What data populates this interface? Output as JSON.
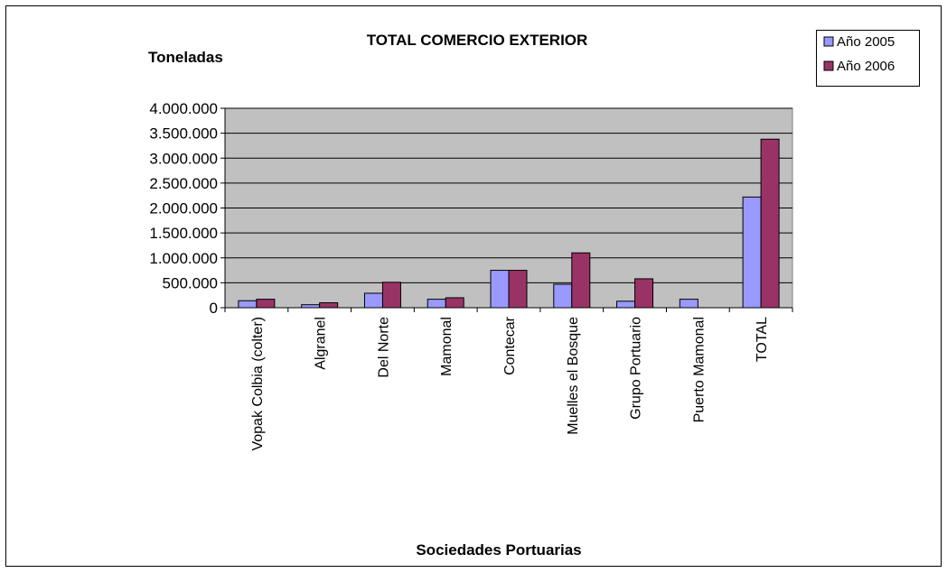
{
  "chart_data": {
    "type": "bar",
    "title": "TOTAL COMERCIO EXTERIOR",
    "ylabel": "Toneladas",
    "xlabel": "Sociedades Portuarias",
    "categories": [
      "Vopak Colbia  (colter)",
      "Algranel",
      "Del  Norte",
      "Mamonal",
      "Contecar",
      "Muelles el Bosque",
      "Grupo Portuario",
      "Puerto Mamonal",
      "TOTAL"
    ],
    "series": [
      {
        "name": "Año 2005",
        "color": "#9999ff",
        "values": [
          140000,
          60000,
          290000,
          170000,
          750000,
          470000,
          130000,
          170000,
          2220000
        ]
      },
      {
        "name": "Año 2006",
        "color": "#993366",
        "values": [
          170000,
          100000,
          510000,
          200000,
          750000,
          1100000,
          580000,
          0,
          3380000
        ]
      }
    ],
    "ylim": [
      0,
      4000000
    ],
    "yticks": [
      "0",
      "500.000",
      "1.000.000",
      "1.500.000",
      "2.000.000",
      "2.500.000",
      "3.000.000",
      "3.500.000",
      "4.000.000"
    ],
    "grid": true,
    "plot_background": "#c0c0c0",
    "legend_position": "top-right"
  }
}
